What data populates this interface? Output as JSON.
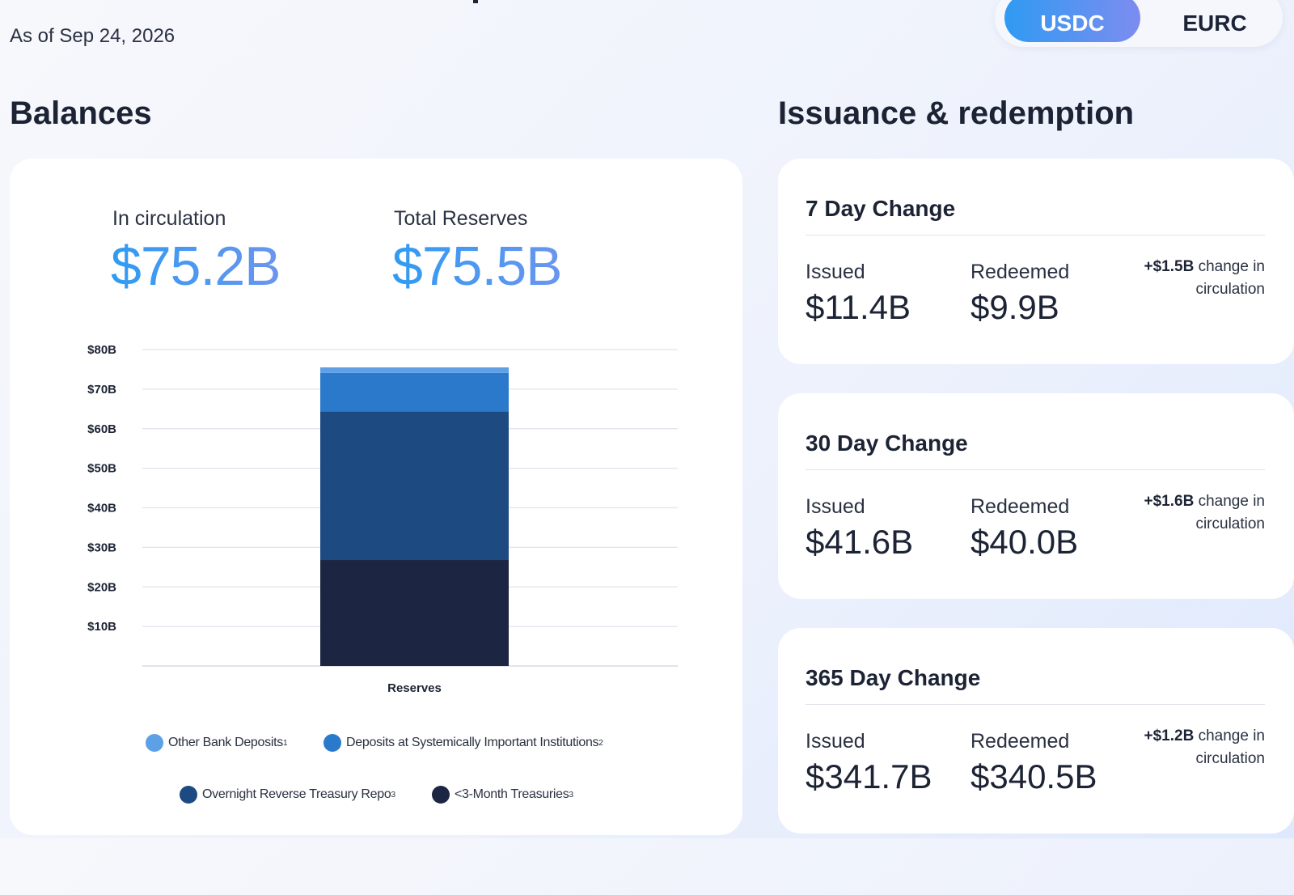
{
  "header": {
    "as_of": "As of Sep 24, 2026",
    "toggle": {
      "active": "USDC",
      "inactive": "EURC"
    }
  },
  "balances": {
    "title": "Balances",
    "in_circulation": {
      "label": "In circulation",
      "value": "$75.2B"
    },
    "total_reserves": {
      "label": "Total Reserves",
      "value": "$75.5B"
    }
  },
  "issuance": {
    "title": "Issuance & redemption",
    "cards": [
      {
        "title": "7 Day Change",
        "issued_label": "Issued",
        "issued": "$11.4B",
        "redeemed_label": "Redeemed",
        "redeemed": "$9.9B",
        "change": "+$1.5B",
        "change_text": "change in circulation"
      },
      {
        "title": "30 Day Change",
        "issued_label": "Issued",
        "issued": "$41.6B",
        "redeemed_label": "Redeemed",
        "redeemed": "$40.0B",
        "change": "+$1.6B",
        "change_text": "change in circulation"
      },
      {
        "title": "365 Day Change",
        "issued_label": "Issued",
        "issued": "$341.7B",
        "redeemed_label": "Redeemed",
        "redeemed": "$340.5B",
        "change": "+$1.2B",
        "change_text": "change in circulation"
      }
    ]
  },
  "chart_data": {
    "type": "bar",
    "stacked": true,
    "categories": [
      "Reserves"
    ],
    "series": [
      {
        "name": "<3-Month Treasuries",
        "footnote": "3",
        "values": [
          26.8
        ],
        "color": "#1c2541"
      },
      {
        "name": "Overnight Reverse Treasury Repo",
        "footnote": "3",
        "values": [
          37.6
        ],
        "color": "#1d4a80"
      },
      {
        "name": "Deposits at Systemically Important Institutions",
        "footnote": "2",
        "values": [
          9.7
        ],
        "color": "#2a79cb"
      },
      {
        "name": "Other Bank Deposits",
        "footnote": "1",
        "values": [
          1.4
        ],
        "color": "#5da0e6"
      }
    ],
    "yticks": [
      "$10B",
      "$20B",
      "$30B",
      "$40B",
      "$50B",
      "$60B",
      "$70B",
      "$80B"
    ],
    "ytick_values": [
      10,
      20,
      30,
      40,
      50,
      60,
      70,
      80
    ],
    "ylim": [
      0,
      80
    ],
    "xlabel": "Reserves",
    "grid": true,
    "legend_position": "bottom",
    "legend_order": [
      3,
      2,
      1,
      0
    ]
  }
}
